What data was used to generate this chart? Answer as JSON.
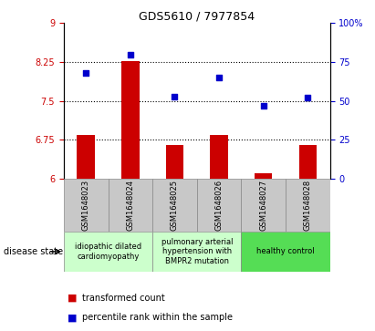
{
  "title": "GDS5610 / 7977854",
  "samples": [
    "GSM1648023",
    "GSM1648024",
    "GSM1648025",
    "GSM1648026",
    "GSM1648027",
    "GSM1648028"
  ],
  "bar_values": [
    6.85,
    8.27,
    6.65,
    6.85,
    6.1,
    6.65
  ],
  "dot_values": [
    68,
    80,
    53,
    65,
    47,
    52
  ],
  "bar_color": "#cc0000",
  "dot_color": "#0000cc",
  "ylim_left": [
    6,
    9
  ],
  "ylim_right": [
    0,
    100
  ],
  "yticks_left": [
    6,
    6.75,
    7.5,
    8.25,
    9
  ],
  "yticks_right": [
    0,
    25,
    50,
    75,
    100
  ],
  "ytick_labels_left": [
    "6",
    "6.75",
    "7.5",
    "8.25",
    "9"
  ],
  "ytick_labels_right": [
    "0",
    "25",
    "50",
    "75",
    "100%"
  ],
  "hlines": [
    6.75,
    7.5,
    8.25
  ],
  "group_defs": [
    {
      "indices": [
        0,
        1
      ],
      "label": "idiopathic dilated\ncardiomyopathy",
      "color": "#ccffcc"
    },
    {
      "indices": [
        2,
        3
      ],
      "label": "pulmonary arterial\nhypertension with\nBMPR2 mutation",
      "color": "#ccffcc"
    },
    {
      "indices": [
        4,
        5
      ],
      "label": "healthy control",
      "color": "#55dd55"
    }
  ],
  "legend_bar_label": "transformed count",
  "legend_dot_label": "percentile rank within the sample",
  "disease_state_label": "disease state",
  "bar_width": 0.4,
  "sample_cell_color": "#c8c8c8",
  "title_fontsize": 9,
  "tick_fontsize": 7,
  "label_fontsize": 6,
  "group_fontsize": 6,
  "legend_fontsize": 7
}
